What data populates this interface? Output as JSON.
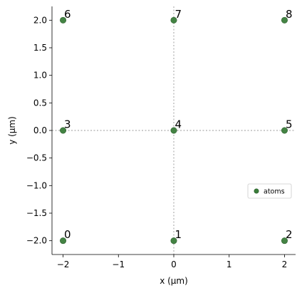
{
  "chart_data": {
    "type": "scatter",
    "title": "",
    "xlabel": "x (µm)",
    "ylabel": "y (µm)",
    "xlim": [
      -2.2,
      2.2
    ],
    "ylim": [
      -2.25,
      2.25
    ],
    "x_ticks": [
      -2,
      -1,
      0,
      1,
      2
    ],
    "x_tick_labels": [
      "−2",
      "−1",
      "0",
      "1",
      "2"
    ],
    "y_ticks": [
      -2.0,
      -1.5,
      -1.0,
      -0.5,
      0.0,
      0.5,
      1.0,
      1.5,
      2.0
    ],
    "y_tick_labels": [
      "−2.0",
      "−1.5",
      "−1.0",
      "−0.5",
      "0.0",
      "0.5",
      "1.0",
      "1.5",
      "2.0"
    ],
    "grid": false,
    "reference_lines": {
      "x": 0,
      "y": 0,
      "style": "dotted"
    },
    "legend": {
      "placement": "right",
      "entries": [
        "atoms"
      ]
    },
    "series": [
      {
        "name": "atoms",
        "color": "#3a7d3a",
        "points": [
          {
            "x": -2,
            "y": -2,
            "label": "0"
          },
          {
            "x": 0,
            "y": -2,
            "label": "1"
          },
          {
            "x": 2,
            "y": -2,
            "label": "2"
          },
          {
            "x": -2,
            "y": 0,
            "label": "3"
          },
          {
            "x": 0,
            "y": 0,
            "label": "4"
          },
          {
            "x": 2,
            "y": 0,
            "label": "5"
          },
          {
            "x": -2,
            "y": 2,
            "label": "6"
          },
          {
            "x": 0,
            "y": 2,
            "label": "7"
          },
          {
            "x": 2,
            "y": 2,
            "label": "8"
          }
        ]
      }
    ]
  }
}
